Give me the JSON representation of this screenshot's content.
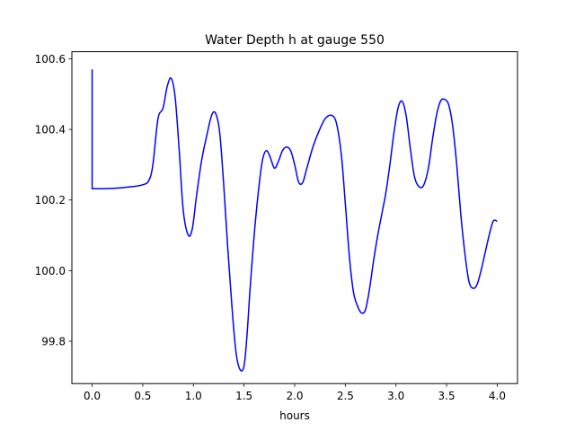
{
  "chart_data": {
    "type": "line",
    "title": "Water Depth h at gauge 550",
    "xlabel": "hours",
    "ylabel": "",
    "xlim": [
      -0.2,
      4.2
    ],
    "ylim": [
      99.68,
      100.62
    ],
    "xticks": [
      0.0,
      0.5,
      1.0,
      1.5,
      2.0,
      2.5,
      3.0,
      3.5,
      4.0
    ],
    "xtick_labels": [
      "0.0",
      "0.5",
      "1.0",
      "1.5",
      "2.0",
      "2.5",
      "3.0",
      "3.5",
      "4.0"
    ],
    "yticks": [
      99.8,
      100.0,
      100.2,
      100.4,
      100.6
    ],
    "ytick_labels": [
      "99.8",
      "100.0",
      "100.2",
      "100.4",
      "100.6"
    ],
    "grid": false,
    "legend": "none",
    "series": [
      {
        "color": "#0000ff",
        "x": [
          0.0,
          0.0,
          0.1,
          0.2,
          0.3,
          0.4,
          0.5,
          0.56,
          0.6,
          0.65,
          0.7,
          0.74,
          0.78,
          0.82,
          0.86,
          0.9,
          0.95,
          0.99,
          1.03,
          1.08,
          1.13,
          1.18,
          1.22,
          1.26,
          1.3,
          1.34,
          1.38,
          1.42,
          1.46,
          1.5,
          1.53,
          1.56,
          1.6,
          1.64,
          1.68,
          1.72,
          1.76,
          1.8,
          1.84,
          1.88,
          1.92,
          1.96,
          2.0,
          2.04,
          2.08,
          2.12,
          2.18,
          2.24,
          2.3,
          2.36,
          2.41,
          2.46,
          2.5,
          2.54,
          2.58,
          2.62,
          2.66,
          2.7,
          2.74,
          2.78,
          2.82,
          2.86,
          2.9,
          2.94,
          2.98,
          3.02,
          3.06,
          3.1,
          3.14,
          3.18,
          3.22,
          3.27,
          3.32,
          3.36,
          3.4,
          3.44,
          3.48,
          3.52,
          3.56,
          3.6,
          3.64,
          3.68,
          3.72,
          3.76,
          3.8,
          3.84,
          3.88,
          3.92,
          3.96,
          4.0
        ],
        "y": [
          100.57,
          100.232,
          100.232,
          100.233,
          100.235,
          100.238,
          100.243,
          100.255,
          100.3,
          100.43,
          100.46,
          100.52,
          100.545,
          100.49,
          100.34,
          100.17,
          100.1,
          100.12,
          100.21,
          100.31,
          100.38,
          100.44,
          100.445,
          100.39,
          100.24,
          100.06,
          99.9,
          99.77,
          99.72,
          99.73,
          99.82,
          99.95,
          100.1,
          100.22,
          100.31,
          100.34,
          100.32,
          100.29,
          100.31,
          100.34,
          100.35,
          100.34,
          100.3,
          100.25,
          100.25,
          100.29,
          100.35,
          100.395,
          100.43,
          100.44,
          100.42,
          100.33,
          100.19,
          100.04,
          99.94,
          99.9,
          99.88,
          99.89,
          99.95,
          100.03,
          100.1,
          100.16,
          100.22,
          100.3,
          100.39,
          100.46,
          100.48,
          100.44,
          100.35,
          100.27,
          100.24,
          100.24,
          100.29,
          100.37,
          100.44,
          100.48,
          100.485,
          100.47,
          100.41,
          100.3,
          100.16,
          100.05,
          99.97,
          99.95,
          99.96,
          100.0,
          100.05,
          100.1,
          100.14,
          100.14
        ]
      }
    ]
  }
}
